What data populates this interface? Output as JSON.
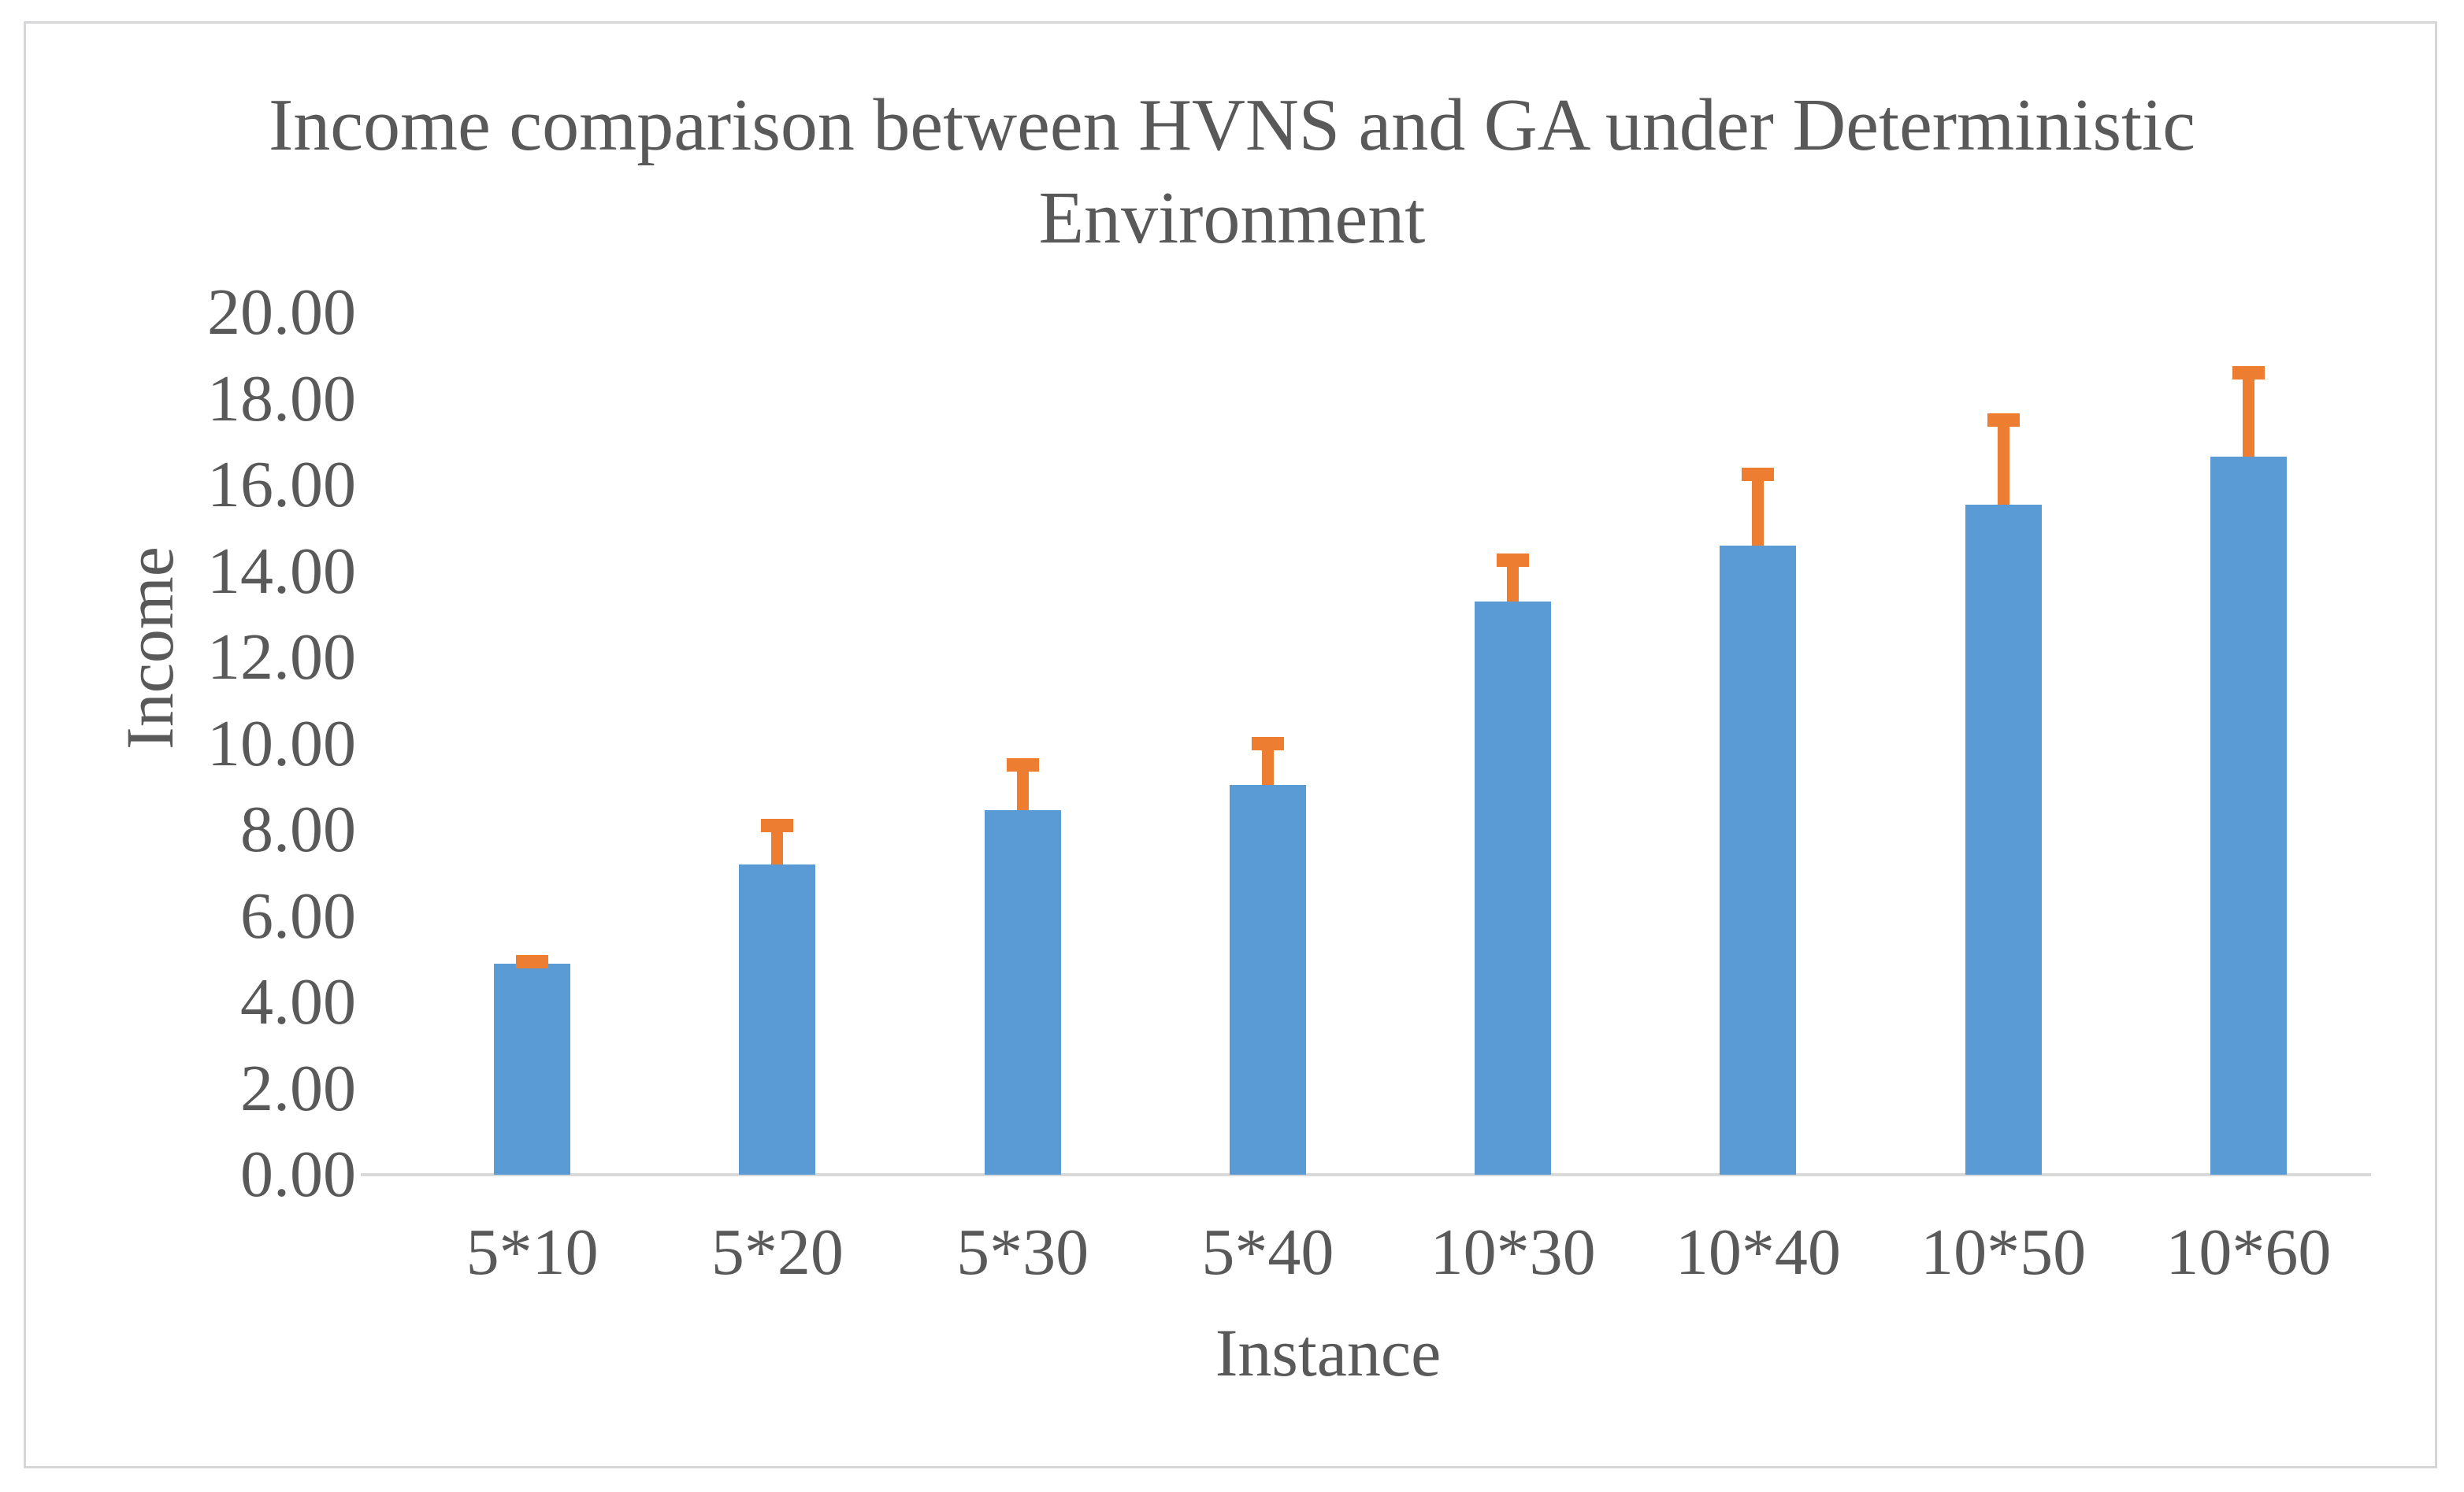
{
  "chart_data": {
    "type": "bar",
    "title": "Income comparison between HVNS and GA under Deterministic Environment",
    "xlabel": "Instance",
    "ylabel": "Income",
    "categories": [
      "5*10",
      "5*20",
      "5*30",
      "5*40",
      "10*30",
      "10*40",
      "10*50",
      "10*60"
    ],
    "series": [
      {
        "name": "Income",
        "values": [
          4.9,
          7.2,
          8.45,
          9.05,
          13.3,
          14.6,
          15.55,
          16.65
        ]
      }
    ],
    "error_bars": {
      "direction": "plus",
      "top_values": [
        4.95,
        8.1,
        9.5,
        10.0,
        14.25,
        16.25,
        17.5,
        18.6
      ]
    },
    "ylim": [
      0,
      20
    ],
    "ytick_step": 2,
    "ytick_labels": [
      "0.00",
      "2.00",
      "4.00",
      "6.00",
      "8.00",
      "10.00",
      "12.00",
      "14.00",
      "16.00",
      "18.00",
      "20.00"
    ],
    "grid": false,
    "legend": "none",
    "colors": {
      "bar": "#5B9BD5",
      "error_bar": "#ED7D31",
      "text": "#595959",
      "axis_line": "#D9D9D9",
      "frame_border": "#D6D6D9"
    }
  }
}
